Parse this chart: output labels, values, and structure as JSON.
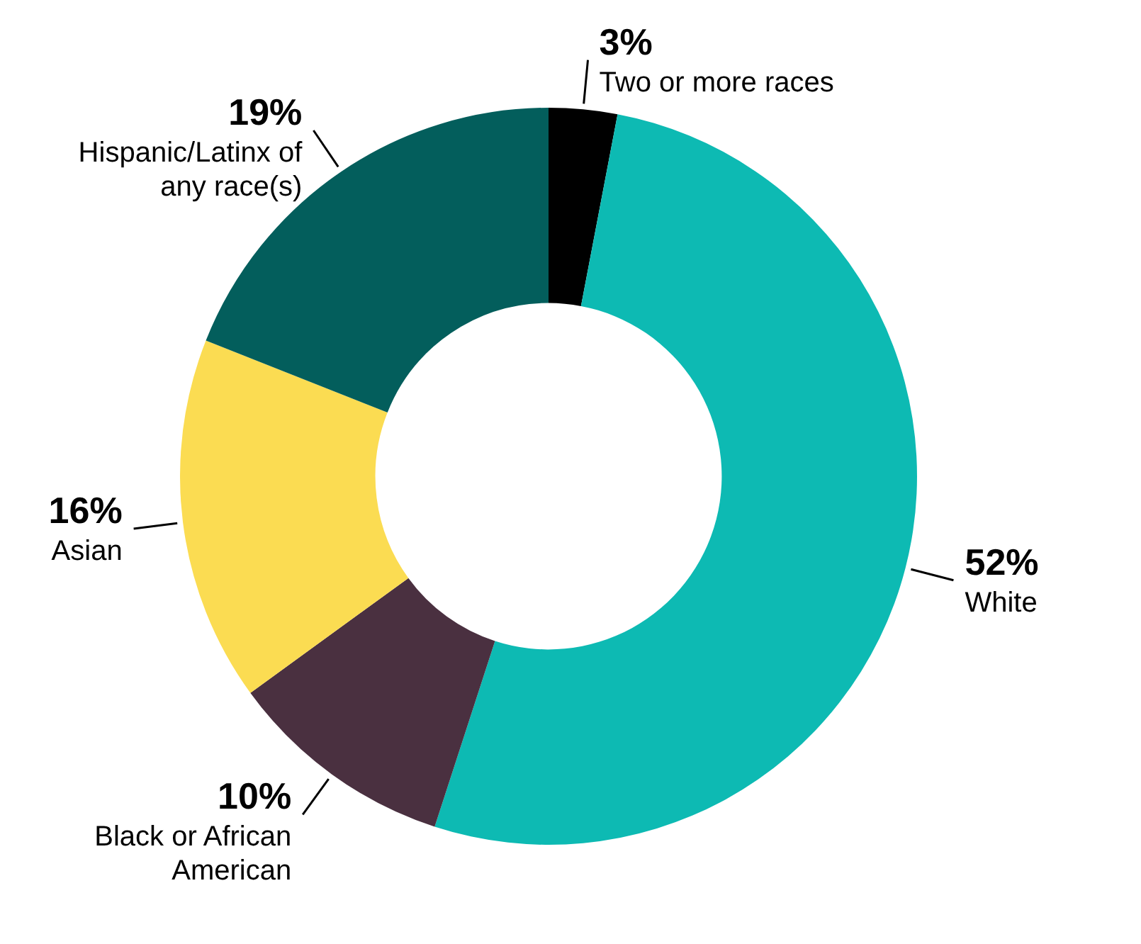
{
  "chart_data": {
    "type": "donut",
    "categories": [
      "Two or more races",
      "White",
      "Black or African American",
      "Asian",
      "Hispanic/Latinx of any race(s)"
    ],
    "values": [
      3,
      52,
      10,
      16,
      19
    ],
    "value_labels": [
      "3%",
      "52%",
      "10%",
      "16%",
      "19%"
    ],
    "colors": [
      "#000000",
      "#0dbab3",
      "#4a3040",
      "#fbdc52",
      "#035e5c"
    ],
    "legend": false
  }
}
